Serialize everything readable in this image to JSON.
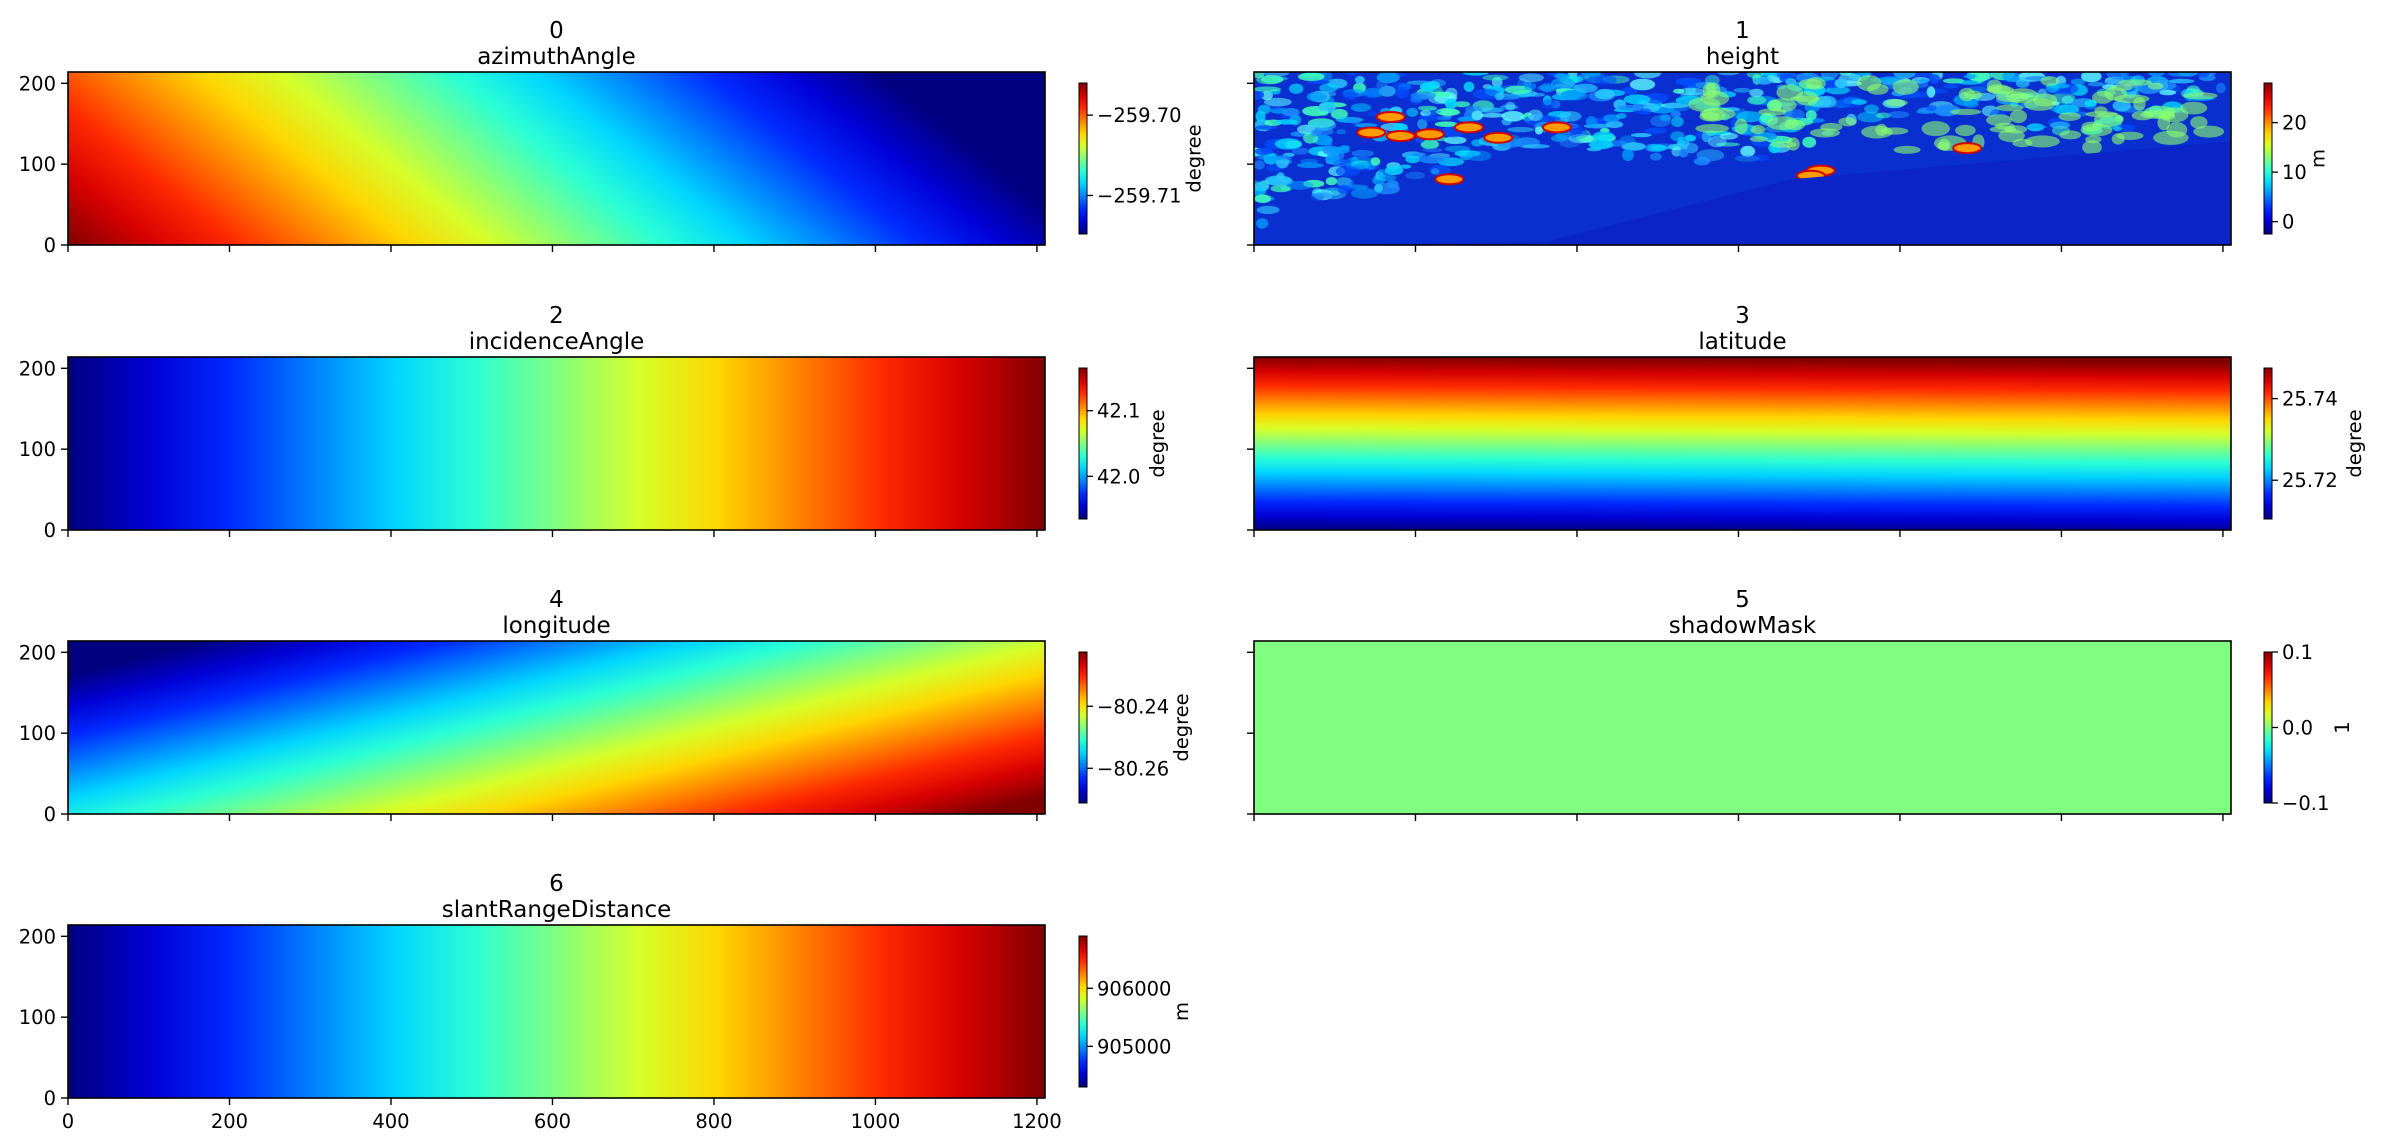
{
  "chart_data": [
    {
      "type": "heatmap",
      "index_label": "0",
      "title": "azimuthAngle",
      "colormap": "jet",
      "x_range": [
        0,
        1210
      ],
      "y_range": [
        0,
        214
      ],
      "y_ticks": [
        "0",
        "100",
        "200"
      ],
      "x_tick_labels_shown": false,
      "colorbar": {
        "label": "degree",
        "ticks": [
          "−259.70",
          "−259.71"
        ],
        "tick_values": [
          -259.7,
          -259.71
        ],
        "range": [
          -259.7148,
          -259.696
        ]
      },
      "pattern": "gradient_left_high_slanted"
    },
    {
      "type": "heatmap",
      "index_label": "1",
      "title": "height",
      "colormap": "jet",
      "x_range": [
        0,
        1210
      ],
      "y_range": [
        0,
        214
      ],
      "y_ticks": [],
      "x_tick_labels_shown": false,
      "colorbar": {
        "label": "m",
        "ticks": [
          "20",
          "10",
          "0"
        ],
        "tick_values": [
          20,
          10,
          0
        ],
        "range": [
          -2.5,
          28
        ]
      },
      "pattern": "noisy_terrain_with_water_band"
    },
    {
      "type": "heatmap",
      "index_label": "2",
      "title": "incidenceAngle",
      "colormap": "jet",
      "x_range": [
        0,
        1210
      ],
      "y_range": [
        0,
        214
      ],
      "y_ticks": [
        "0",
        "100",
        "200"
      ],
      "x_tick_labels_shown": false,
      "colorbar": {
        "label": "degree",
        "ticks": [
          "42.1",
          "42.0"
        ],
        "tick_values": [
          42.1,
          42.0
        ],
        "range": [
          41.935,
          42.165
        ]
      },
      "pattern": "gradient_left_to_right"
    },
    {
      "type": "heatmap",
      "index_label": "3",
      "title": "latitude",
      "colormap": "jet",
      "x_range": [
        0,
        1210
      ],
      "y_range": [
        0,
        214
      ],
      "y_ticks": [],
      "x_tick_labels_shown": false,
      "colorbar": {
        "label": "degree",
        "ticks": [
          "25.74",
          "25.72"
        ],
        "tick_values": [
          25.74,
          25.72
        ],
        "range": [
          25.7105,
          25.7475
        ]
      },
      "pattern": "gradient_bottom_to_top"
    },
    {
      "type": "heatmap",
      "index_label": "4",
      "title": "longitude",
      "colormap": "jet",
      "x_range": [
        0,
        1210
      ],
      "y_range": [
        0,
        214
      ],
      "y_ticks": [
        "0",
        "100",
        "200"
      ],
      "x_tick_labels_shown": false,
      "colorbar": {
        "label": "degree",
        "ticks": [
          "−80.24",
          "−80.26"
        ],
        "tick_values": [
          -80.24,
          -80.26
        ],
        "range": [
          -80.2712,
          -80.2225
        ]
      },
      "pattern": "gradient_right_high_slanted"
    },
    {
      "type": "heatmap",
      "index_label": "5",
      "title": "shadowMask",
      "colormap": "jet",
      "x_range": [
        0,
        1210
      ],
      "y_range": [
        0,
        214
      ],
      "y_ticks": [],
      "x_tick_labels_shown": false,
      "colorbar": {
        "label": "1",
        "ticks": [
          "0.1",
          "0.0",
          "−0.1"
        ],
        "tick_values": [
          0.1,
          0.0,
          -0.1
        ],
        "range": [
          -0.1,
          0.1
        ]
      },
      "pattern": "constant"
    },
    {
      "type": "heatmap",
      "index_label": "6",
      "title": "slantRangeDistance",
      "colormap": "jet",
      "x_range": [
        0,
        1210
      ],
      "y_range": [
        0,
        214
      ],
      "y_ticks": [
        "0",
        "100",
        "200"
      ],
      "x_ticks": [
        "0",
        "200",
        "400",
        "600",
        "800",
        "1000",
        "1200"
      ],
      "x_tick_labels_shown": true,
      "colorbar": {
        "label": "m",
        "ticks": [
          "906000",
          "905000"
        ],
        "tick_values": [
          906000,
          905000
        ],
        "range": [
          904300,
          906900
        ]
      },
      "pattern": "gradient_left_to_right"
    }
  ]
}
